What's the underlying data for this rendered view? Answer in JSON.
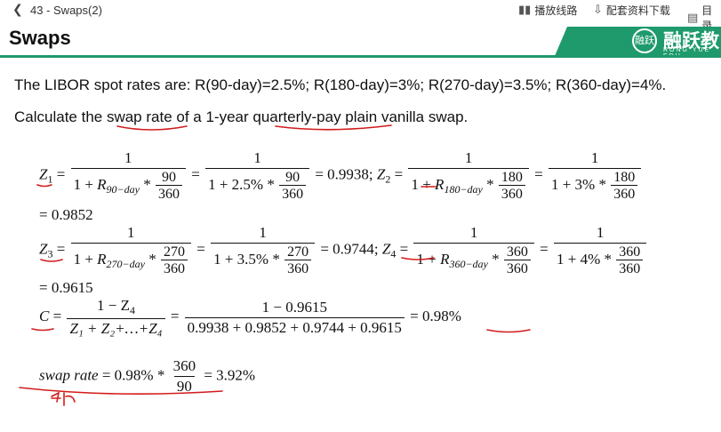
{
  "topbar": {
    "back_icon": "chevron-left-icon",
    "breadcrumb": "43 - Swaps(2)",
    "route_label": "播放线路",
    "download_label": "配套资料下载",
    "toc_label": "目录"
  },
  "slide": {
    "title": "Swaps",
    "brand_cn": "融跃教",
    "brand_en": "RONG  YUE  EDU",
    "brand_logo_text": "融跃",
    "accent_color": "#1f9a6d",
    "annotation_color": "#d21b1b",
    "intro": "The LIBOR spot rates are: R(90-day)=2.5%; R(180-day)=3%; R(270-day)=3.5%; R(360-day)=4%.",
    "question": "Calculate the swap rate of a 1-year quarterly-pay plain vanilla swap.",
    "eq": {
      "z1_label": "Z",
      "z1_sub": "1",
      "z1_num": "1",
      "z1_den_a": "1 + ",
      "z1_den_r": "R",
      "z1_den_rsub": "90−day",
      "f90_num": "90",
      "f90_den": "360",
      "z1_num2": "1",
      "z1_den2": "1 + 2.5% * ",
      "z1_val": "= 0.9938;",
      "z2_label": "Z",
      "z2_sub": "2",
      "z2_num": "1",
      "z2_den_a": "1 + ",
      "z2_den_r": "R",
      "z2_den_rsub": "180−day",
      "f180_num": "180",
      "f180_den": "360",
      "z2_num2": "1",
      "z2_den2": "1 + 3% * ",
      "z2_val": "= 0.9852",
      "z3_label": "Z",
      "z3_sub": "3",
      "z3_num": "1",
      "z3_den_a": "1 + ",
      "z3_den_r": "R",
      "z3_den_rsub": "270−day",
      "f270_num": "270",
      "f270_den": "360",
      "z3_num2": "1",
      "z3_den2": "1 + 3.5% * ",
      "z3_val": "= 0.9744",
      "z4_label": "Z",
      "z4_sub": "4",
      "z4_num": "1",
      "z4_den_a": "1 + ",
      "z4_den_r": "R",
      "z4_den_rsub": "360−day",
      "f360_num": "360",
      "f360_den": "360",
      "z4_num2": "1",
      "z4_den2": "1 + 4% * ",
      "z4_val": "= 0.9615",
      "c_label": "C",
      "c_num": "1 − Z",
      "c_num_sub": "4",
      "c_den": "Z₁ + Z₂+…+Z₄",
      "c_num2": "1 − 0.9615",
      "c_den2": "0.9938 + 0.9852 + 0.9744 + 0.9615",
      "c_val": "0.98%",
      "sr_label": "swap rate",
      "sr_eq": "= 0.98% *",
      "sr_num": "360",
      "sr_den": "90",
      "sr_val": "= 3.92%"
    }
  }
}
